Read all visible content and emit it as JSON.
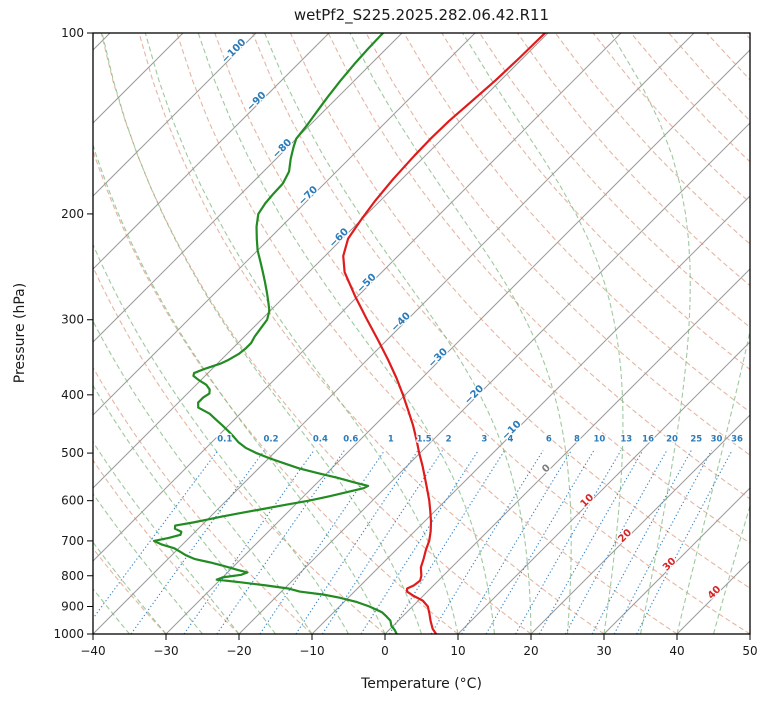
{
  "chart_data": {
    "type": "line",
    "variant": "skew-t-log-p-sounding",
    "title": "wetPf2_S225.2025.282.06.42.R11",
    "axes": {
      "x": {
        "label": "Temperature (°C)",
        "min": -40,
        "max": 50,
        "ticks": [
          -40,
          -30,
          -20,
          -10,
          0,
          10,
          20,
          30,
          40,
          50
        ]
      },
      "y": {
        "label": "Pressure (hPa)",
        "scale": "log",
        "min": 100,
        "max": 1000,
        "ticks": [
          100,
          200,
          300,
          400,
          500,
          600,
          700,
          800,
          900,
          1000
        ]
      }
    },
    "skew_c_per_decade": 82.33,
    "grid": {
      "isotherms": {
        "min": -120,
        "max": 50,
        "step": 10,
        "color": "#9b9b9b",
        "label_colors": {
          "negative": "#2b7bb9",
          "zero": "#808080",
          "positive": "#d62728"
        },
        "labels": [
          {
            "value": -100,
            "p": 108
          },
          {
            "value": -90,
            "p": 131
          },
          {
            "value": -80,
            "p": 157
          },
          {
            "value": -70,
            "p": 188
          },
          {
            "value": -60,
            "p": 221
          },
          {
            "value": -50,
            "p": 263
          },
          {
            "value": -40,
            "p": 305
          },
          {
            "value": -30,
            "p": 350
          },
          {
            "value": -20,
            "p": 403
          },
          {
            "value": -10,
            "p": 462
          },
          {
            "value": 0,
            "p": 535
          },
          {
            "value": 10,
            "p": 605
          },
          {
            "value": 20,
            "p": 692
          },
          {
            "value": 30,
            "p": 772
          },
          {
            "value": 40,
            "p": 860
          }
        ]
      },
      "dry_adiabats": {
        "theta_min": -40,
        "theta_max": 190,
        "step": 10,
        "color": "#d69072",
        "dash": "5 3",
        "opacity": 0.65,
        "width": 1.1
      },
      "moist_adiabats": {
        "t_start_min": -40,
        "t_start_max": 45,
        "step": 5,
        "color": "#7fb87f",
        "dash": "5 3",
        "opacity": 0.75,
        "width": 1.1
      },
      "mixing_ratio": {
        "values": [
          0.1,
          0.2,
          0.4,
          0.6,
          1,
          1.5,
          2,
          3,
          4,
          6,
          8,
          10,
          13,
          16,
          20,
          25,
          30,
          36
        ],
        "labels": [
          "0.1",
          "0.2",
          "0.4",
          "0.6",
          "1",
          "1.5",
          "2",
          "3",
          "4",
          "6",
          "8",
          "10",
          "13",
          "16",
          "20",
          "25",
          "30",
          "36"
        ],
        "color": "#3a87c8",
        "label_color": "#2b7bb9",
        "dash": "1.3 2.4",
        "top_p": 495,
        "label_p": 478,
        "width": 1.1
      }
    },
    "series": [
      {
        "name": "temperature",
        "color": "#e01b1b",
        "width": 2.2,
        "points": [
          [
            1000,
            7.0
          ],
          [
            980,
            5.8
          ],
          [
            950,
            4.4
          ],
          [
            925,
            3.3
          ],
          [
            900,
            2.1
          ],
          [
            880,
            0.6
          ],
          [
            865,
            -1.2
          ],
          [
            850,
            -2.8
          ],
          [
            840,
            -3.2
          ],
          [
            830,
            -2.7
          ],
          [
            815,
            -2.5
          ],
          [
            800,
            -3.0
          ],
          [
            775,
            -4.2
          ],
          [
            750,
            -5.0
          ],
          [
            725,
            -5.9
          ],
          [
            700,
            -6.7
          ],
          [
            675,
            -7.8
          ],
          [
            650,
            -9.1
          ],
          [
            625,
            -10.6
          ],
          [
            600,
            -12.2
          ],
          [
            575,
            -14.0
          ],
          [
            550,
            -15.9
          ],
          [
            525,
            -17.9
          ],
          [
            500,
            -20.1
          ],
          [
            475,
            -22.3
          ],
          [
            450,
            -24.7
          ],
          [
            425,
            -27.4
          ],
          [
            400,
            -30.3
          ],
          [
            375,
            -33.5
          ],
          [
            350,
            -37.1
          ],
          [
            325,
            -41.1
          ],
          [
            300,
            -45.5
          ],
          [
            275,
            -50.2
          ],
          [
            250,
            -55.1
          ],
          [
            235,
            -57.5
          ],
          [
            220,
            -59.2
          ],
          [
            205,
            -60.0
          ],
          [
            190,
            -60.7
          ],
          [
            175,
            -61.2
          ],
          [
            160,
            -61.5
          ],
          [
            150,
            -61.6
          ],
          [
            140,
            -61.5
          ],
          [
            130,
            -61.1
          ],
          [
            120,
            -60.7
          ],
          [
            110,
            -60.5
          ],
          [
            100,
            -60.4
          ]
        ]
      },
      {
        "name": "dewpoint",
        "color": "#228b22",
        "width": 2.2,
        "points": [
          [
            1000,
            1.6
          ],
          [
            985,
            0.8
          ],
          [
            970,
            -0.2
          ],
          [
            950,
            -1.1
          ],
          [
            935,
            -2.2
          ],
          [
            920,
            -3.4
          ],
          [
            900,
            -5.9
          ],
          [
            885,
            -8.2
          ],
          [
            870,
            -11.2
          ],
          [
            860,
            -13.8
          ],
          [
            850,
            -17.5
          ],
          [
            840,
            -19.5
          ],
          [
            830,
            -23.0
          ],
          [
            820,
            -27.0
          ],
          [
            812,
            -30.5
          ],
          [
            805,
            -30.0
          ],
          [
            797,
            -27.8
          ],
          [
            790,
            -27.3
          ],
          [
            783,
            -28.8
          ],
          [
            770,
            -31.5
          ],
          [
            760,
            -33.8
          ],
          [
            750,
            -36.4
          ],
          [
            740,
            -38.0
          ],
          [
            730,
            -39.3
          ],
          [
            720,
            -40.6
          ],
          [
            710,
            -42.8
          ],
          [
            700,
            -44.4
          ],
          [
            692,
            -42.8
          ],
          [
            684,
            -41.6
          ],
          [
            676,
            -41.9
          ],
          [
            668,
            -43.2
          ],
          [
            660,
            -43.6
          ],
          [
            652,
            -41.5
          ],
          [
            645,
            -40.0
          ],
          [
            638,
            -38.5
          ],
          [
            630,
            -36.6
          ],
          [
            620,
            -34.0
          ],
          [
            610,
            -31.4
          ],
          [
            600,
            -28.7
          ],
          [
            590,
            -26.5
          ],
          [
            580,
            -24.5
          ],
          [
            572,
            -22.9
          ],
          [
            567,
            -22.6
          ],
          [
            560,
            -24.8
          ],
          [
            550,
            -27.8
          ],
          [
            540,
            -31.2
          ],
          [
            530,
            -34.5
          ],
          [
            520,
            -37.2
          ],
          [
            510,
            -39.9
          ],
          [
            500,
            -42.4
          ],
          [
            490,
            -44.6
          ],
          [
            480,
            -46.3
          ],
          [
            470,
            -47.7
          ],
          [
            460,
            -49.2
          ],
          [
            450,
            -50.8
          ],
          [
            440,
            -52.5
          ],
          [
            430,
            -54.2
          ],
          [
            420,
            -56.6
          ],
          [
            412,
            -57.3
          ],
          [
            404,
            -57.3
          ],
          [
            398,
            -57.0
          ],
          [
            392,
            -57.5
          ],
          [
            385,
            -58.6
          ],
          [
            378,
            -60.3
          ],
          [
            372,
            -61.6
          ],
          [
            368,
            -61.9
          ],
          [
            362,
            -61.0
          ],
          [
            355,
            -59.6
          ],
          [
            350,
            -59.0
          ],
          [
            342,
            -58.4
          ],
          [
            335,
            -58.2
          ],
          [
            328,
            -58.2
          ],
          [
            320,
            -58.6
          ],
          [
            310,
            -58.9
          ],
          [
            300,
            -59.2
          ],
          [
            290,
            -60.1
          ],
          [
            280,
            -61.5
          ],
          [
            270,
            -63.0
          ],
          [
            260,
            -64.6
          ],
          [
            250,
            -66.3
          ],
          [
            240,
            -68.1
          ],
          [
            230,
            -70.0
          ],
          [
            220,
            -71.7
          ],
          [
            210,
            -73.4
          ],
          [
            200,
            -74.9
          ],
          [
            192,
            -75.4
          ],
          [
            185,
            -75.6
          ],
          [
            178,
            -75.7
          ],
          [
            170,
            -76.5
          ],
          [
            162,
            -78.0
          ],
          [
            155,
            -79.2
          ],
          [
            150,
            -80.0
          ],
          [
            142,
            -80.4
          ],
          [
            135,
            -80.9
          ],
          [
            128,
            -81.4
          ],
          [
            120,
            -81.9
          ],
          [
            112,
            -82.3
          ],
          [
            106,
            -82.5
          ],
          [
            100,
            -82.6
          ]
        ]
      }
    ]
  }
}
